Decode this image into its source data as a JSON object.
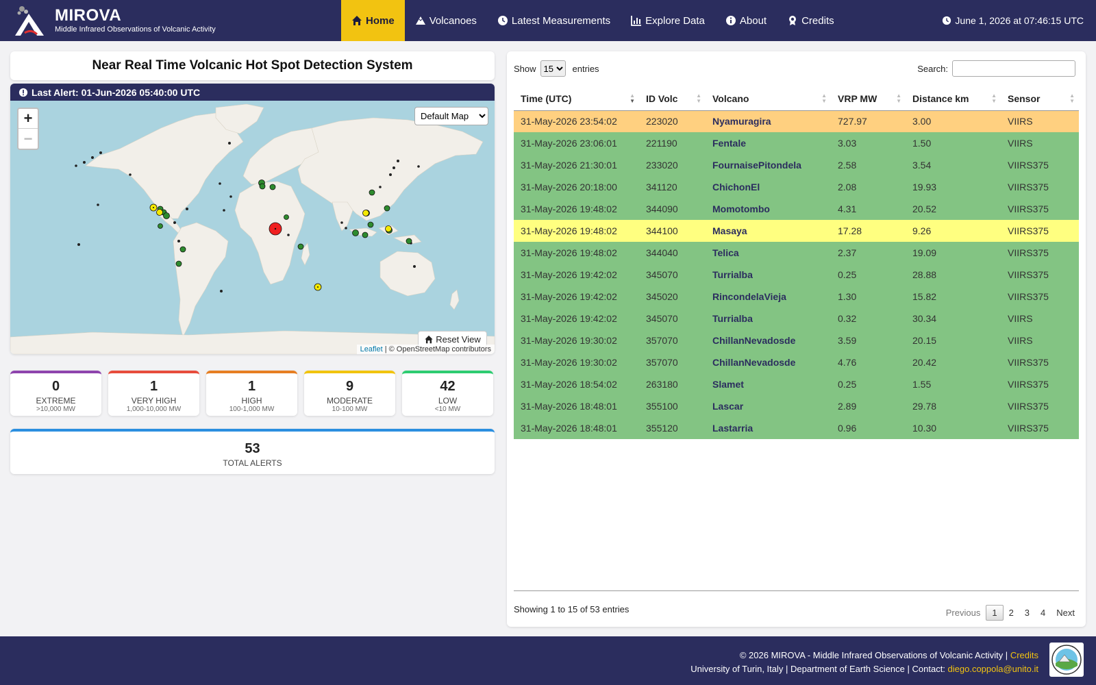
{
  "brand": {
    "title": "MIROVA",
    "subtitle": "Middle Infrared Observations of Volcanic Activity"
  },
  "nav": {
    "home": "Home",
    "volcanoes": "Volcanoes",
    "latest": "Latest Measurements",
    "explore": "Explore Data",
    "about": "About",
    "credits": "Credits"
  },
  "clock": "June 1, 2026 at 07:46:15 UTC",
  "left": {
    "title": "Near Real Time Volcanic Hot Spot Detection System",
    "last_alert": "Last Alert: 01-Jun-2026 05:40:00 UTC",
    "map_select": "Default Map",
    "reset_label": "Reset View",
    "attrib_link": "Leaflet",
    "attrib_rest": " | © OpenStreetMap contributors"
  },
  "stats": [
    {
      "count": "0",
      "label": "EXTREME",
      "range": ">10,000 MW",
      "color": "#8e44ad"
    },
    {
      "count": "1",
      "label": "VERY HIGH",
      "range": "1,000-10,000 MW",
      "color": "#e74c3c"
    },
    {
      "count": "1",
      "label": "HIGH",
      "range": "100-1,000 MW",
      "color": "#e67e22"
    },
    {
      "count": "9",
      "label": "MODERATE",
      "range": "10-100 MW",
      "color": "#f1c40f"
    },
    {
      "count": "42",
      "label": "LOW",
      "range": "<10 MW",
      "color": "#2ecc71"
    }
  ],
  "total": {
    "count": "53",
    "label": "TOTAL ALERTS"
  },
  "table": {
    "show_label": "Show",
    "page_size": "15",
    "entries_label": "entries",
    "search_label": "Search:",
    "columns": [
      "Time (UTC)",
      "ID Volc",
      "Volcano",
      "VRP MW",
      "Distance km",
      "Sensor"
    ],
    "rows": [
      {
        "time": "31-May-2026 23:54:02",
        "id": "223020",
        "volcano": "Nyamuragira",
        "vrp": "727.97",
        "dist": "3.00",
        "sensor": "VIIRS",
        "level": "high"
      },
      {
        "time": "31-May-2026 23:06:01",
        "id": "221190",
        "volcano": "Fentale",
        "vrp": "3.03",
        "dist": "1.50",
        "sensor": "VIIRS",
        "level": "low"
      },
      {
        "time": "31-May-2026 21:30:01",
        "id": "233020",
        "volcano": "FournaisePitondela",
        "vrp": "2.58",
        "dist": "3.54",
        "sensor": "VIIRS375",
        "level": "low"
      },
      {
        "time": "31-May-2026 20:18:00",
        "id": "341120",
        "volcano": "ChichonEl",
        "vrp": "2.08",
        "dist": "19.93",
        "sensor": "VIIRS375",
        "level": "low"
      },
      {
        "time": "31-May-2026 19:48:02",
        "id": "344090",
        "volcano": "Momotombo",
        "vrp": "4.31",
        "dist": "20.52",
        "sensor": "VIIRS375",
        "level": "low"
      },
      {
        "time": "31-May-2026 19:48:02",
        "id": "344100",
        "volcano": "Masaya",
        "vrp": "17.28",
        "dist": "9.26",
        "sensor": "VIIRS375",
        "level": "mod"
      },
      {
        "time": "31-May-2026 19:48:02",
        "id": "344040",
        "volcano": "Telica",
        "vrp": "2.37",
        "dist": "19.09",
        "sensor": "VIIRS375",
        "level": "low"
      },
      {
        "time": "31-May-2026 19:42:02",
        "id": "345070",
        "volcano": "Turrialba",
        "vrp": "0.25",
        "dist": "28.88",
        "sensor": "VIIRS375",
        "level": "low"
      },
      {
        "time": "31-May-2026 19:42:02",
        "id": "345020",
        "volcano": "RincondelaVieja",
        "vrp": "1.30",
        "dist": "15.82",
        "sensor": "VIIRS375",
        "level": "low"
      },
      {
        "time": "31-May-2026 19:42:02",
        "id": "345070",
        "volcano": "Turrialba",
        "vrp": "0.32",
        "dist": "30.34",
        "sensor": "VIIRS",
        "level": "low"
      },
      {
        "time": "31-May-2026 19:30:02",
        "id": "357070",
        "volcano": "ChillanNevadosde",
        "vrp": "3.59",
        "dist": "20.15",
        "sensor": "VIIRS",
        "level": "low"
      },
      {
        "time": "31-May-2026 19:30:02",
        "id": "357070",
        "volcano": "ChillanNevadosde",
        "vrp": "4.76",
        "dist": "20.42",
        "sensor": "VIIRS375",
        "level": "low"
      },
      {
        "time": "31-May-2026 18:54:02",
        "id": "263180",
        "volcano": "Slamet",
        "vrp": "0.25",
        "dist": "1.55",
        "sensor": "VIIRS375",
        "level": "low"
      },
      {
        "time": "31-May-2026 18:48:01",
        "id": "355100",
        "volcano": "Lascar",
        "vrp": "2.89",
        "dist": "29.78",
        "sensor": "VIIRS375",
        "level": "low"
      },
      {
        "time": "31-May-2026 18:48:01",
        "id": "355120",
        "volcano": "Lastarria",
        "vrp": "0.96",
        "dist": "10.30",
        "sensor": "VIIRS375",
        "level": "low"
      }
    ],
    "info": "Showing 1 to 15 of 53 entries",
    "pager": {
      "prev": "Previous",
      "pages": [
        "1",
        "2",
        "3",
        "4"
      ],
      "next": "Next"
    }
  },
  "footer": {
    "line1": "© 2026 MIROVA - Middle Infrared Observations of Volcanic Activity | ",
    "credits_link": "Credits",
    "line2": "University of Turin, Italy | Department of Earth Science | Contact: ",
    "email": "diego.coppola@unito.it"
  },
  "colors": {
    "navy": "#2b2d5e",
    "accent": "#f2c311",
    "low": "#83c483",
    "moderate": "#ffff80",
    "high": "#ffd080"
  }
}
